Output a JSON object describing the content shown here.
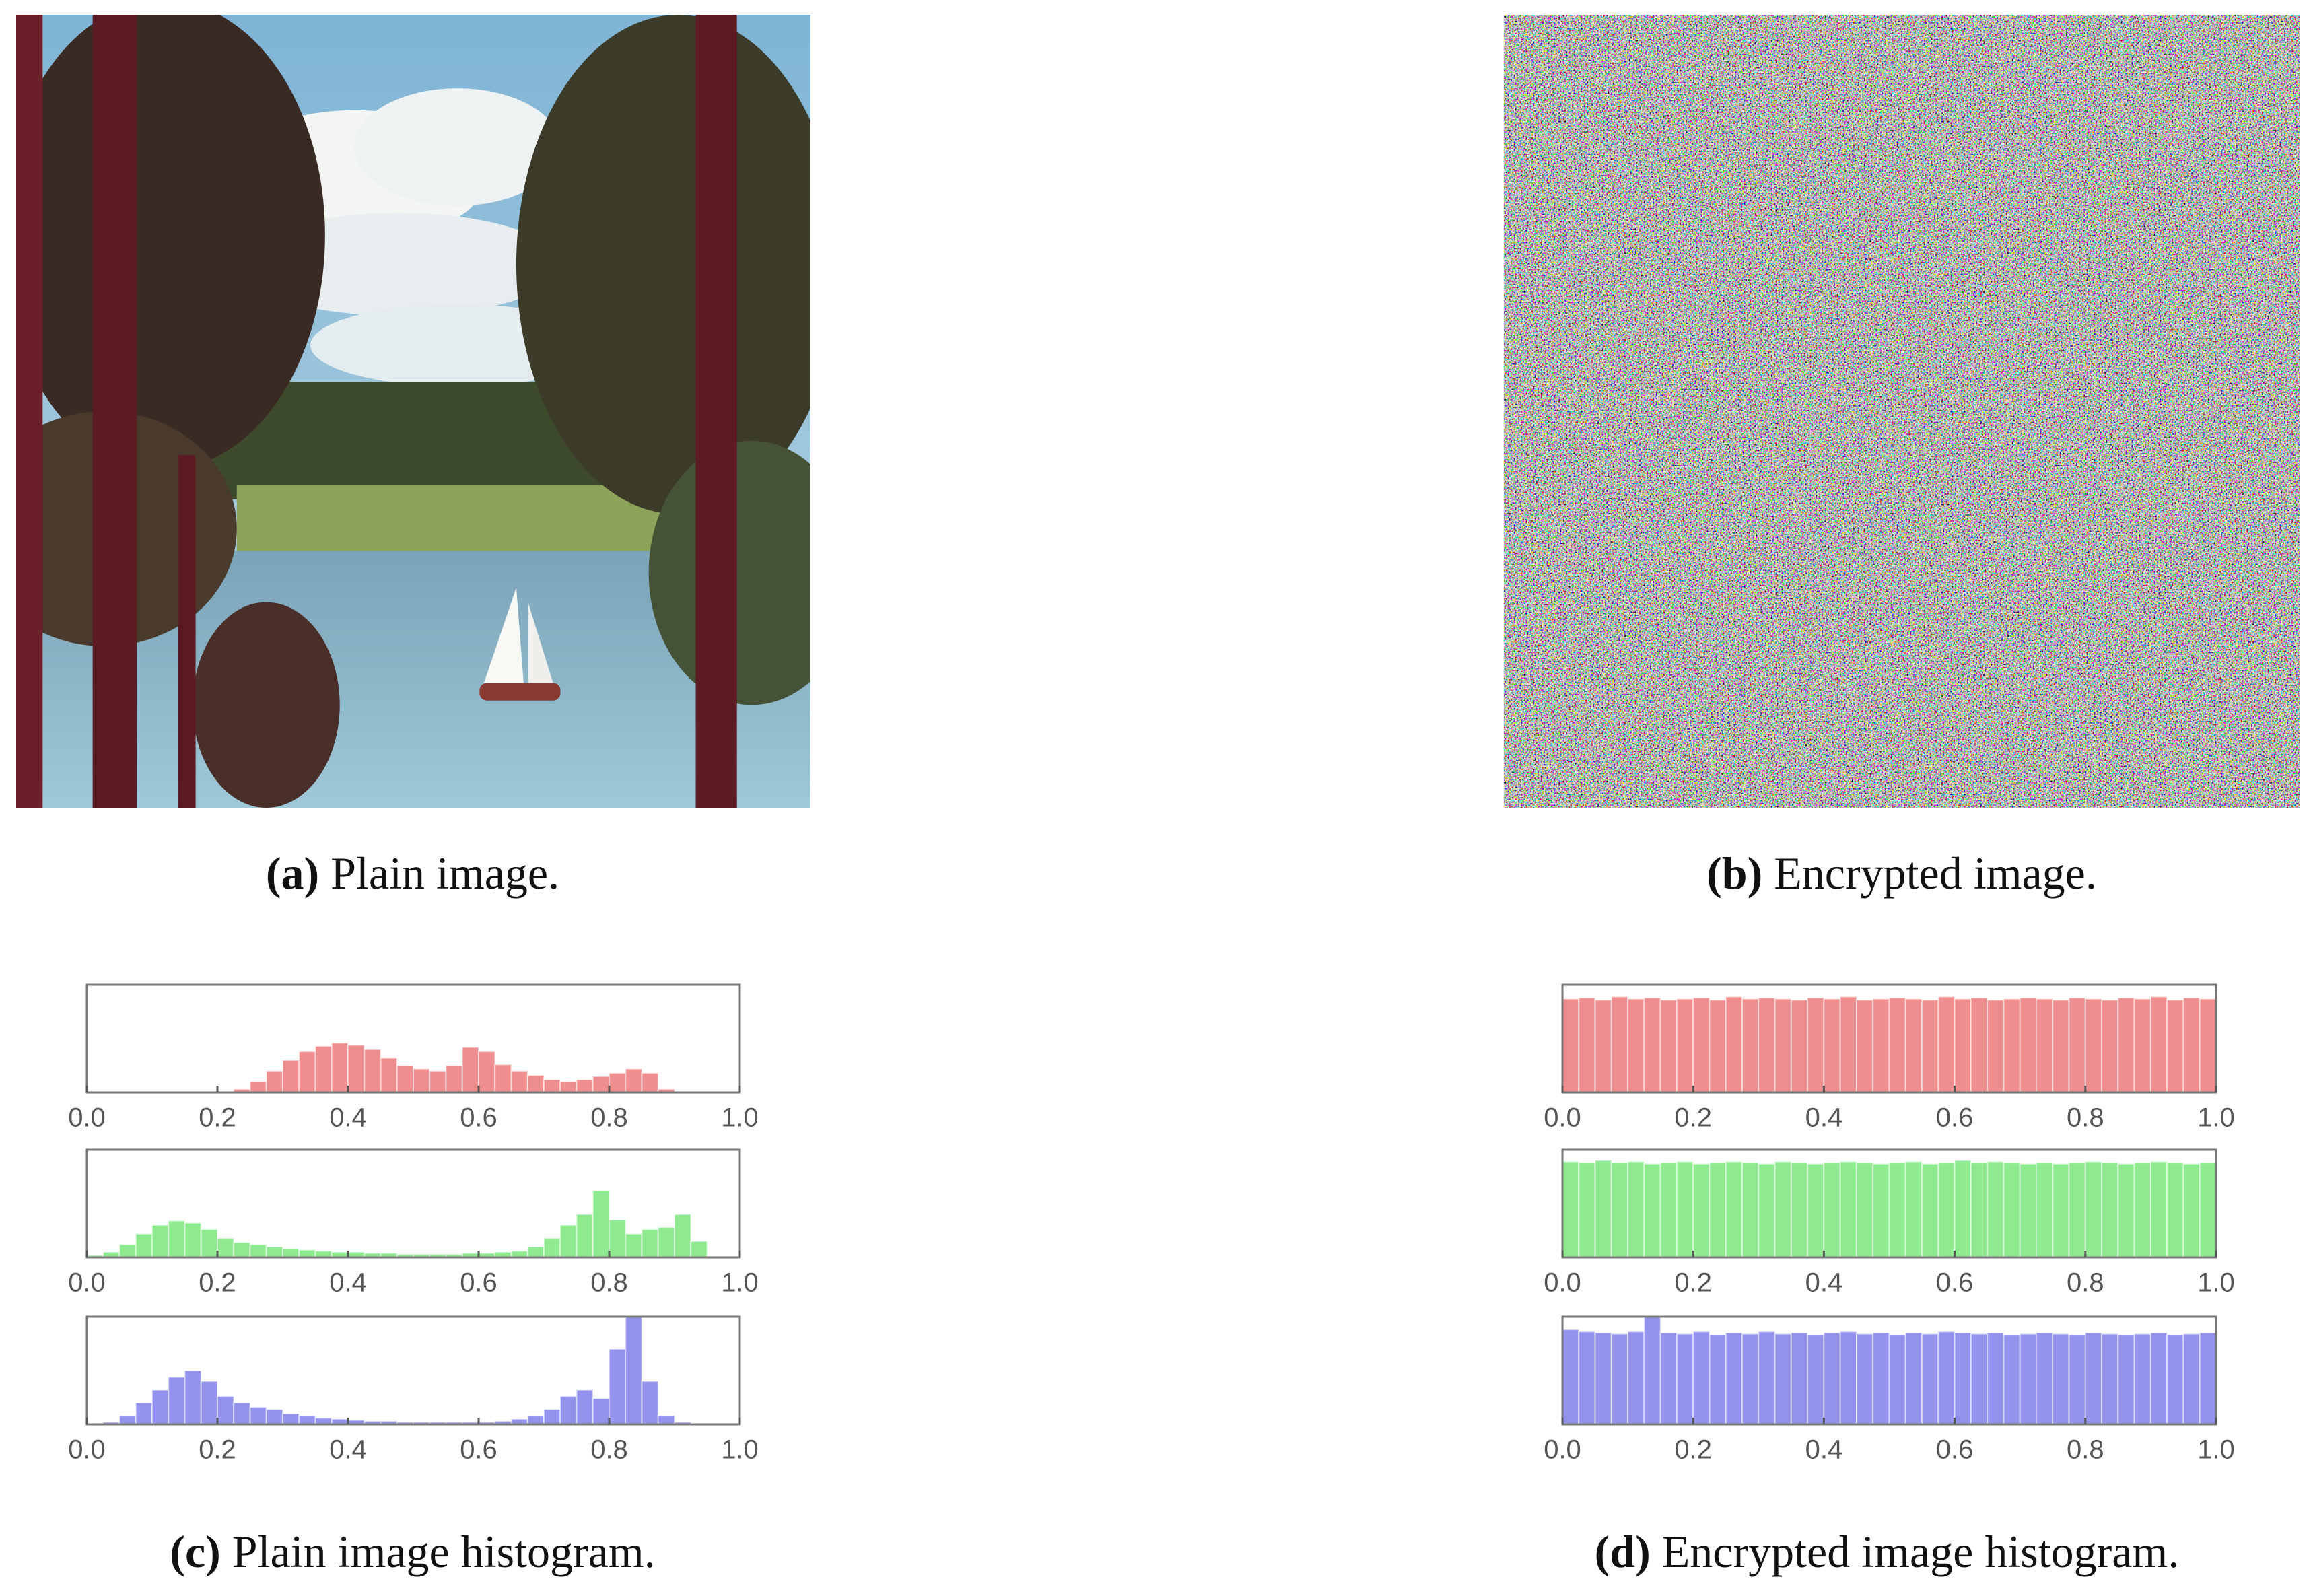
{
  "figure": {
    "panels": [
      {
        "label": "(a)",
        "caption": "Plain image."
      },
      {
        "label": "(b)",
        "caption": "Encrypted image."
      },
      {
        "label": "(c)",
        "caption": "Plain image histogram."
      },
      {
        "label": "(d)",
        "caption": "Encrypted image histogram."
      }
    ]
  },
  "chart_data": [
    {
      "type": "histogram",
      "color": "#ef8e8e",
      "bins": [
        0,
        0.025,
        0.05,
        0.075,
        0.1,
        0.125,
        0.15,
        0.175,
        0.2,
        0.225,
        0.25,
        0.275,
        0.3,
        0.325,
        0.35,
        0.375,
        0.4,
        0.425,
        0.45,
        0.475,
        0.5,
        0.525,
        0.55,
        0.575,
        0.6,
        0.625,
        0.65,
        0.675,
        0.7,
        0.725,
        0.75,
        0.775,
        0.8,
        0.825,
        0.85,
        0.875,
        0.9,
        0.925,
        0.95,
        0.975,
        1
      ],
      "values": [
        0,
        0,
        0,
        0,
        0,
        0,
        0,
        0,
        0,
        3,
        10,
        20,
        30,
        38,
        43,
        46,
        44,
        40,
        32,
        25,
        22,
        20,
        25,
        42,
        38,
        26,
        20,
        16,
        12,
        10,
        12,
        15,
        18,
        22,
        18,
        3,
        0,
        0,
        0,
        0
      ],
      "xlim": [
        0,
        1
      ],
      "ylim": [
        0,
        100
      ],
      "xticks": [
        {
          "value": 0,
          "label": "0.0"
        },
        0.2,
        0.4,
        0.6,
        0.8,
        {
          "value": 1,
          "label": "1.0"
        }
      ]
    },
    {
      "type": "histogram",
      "color": "#8fea8f",
      "bins": [
        0,
        0.025,
        0.05,
        0.075,
        0.1,
        0.125,
        0.15,
        0.175,
        0.2,
        0.225,
        0.25,
        0.275,
        0.3,
        0.325,
        0.35,
        0.375,
        0.4,
        0.425,
        0.45,
        0.475,
        0.5,
        0.525,
        0.55,
        0.575,
        0.6,
        0.625,
        0.65,
        0.675,
        0.7,
        0.725,
        0.75,
        0.775,
        0.8,
        0.825,
        0.85,
        0.875,
        0.9,
        0.925,
        0.95,
        0.975,
        1
      ],
      "values": [
        2,
        5,
        12,
        22,
        30,
        34,
        32,
        26,
        18,
        14,
        12,
        10,
        8,
        7,
        6,
        5,
        5,
        4,
        4,
        3,
        3,
        3,
        3,
        4,
        4,
        5,
        6,
        10,
        18,
        30,
        40,
        62,
        35,
        22,
        26,
        28,
        40,
        15,
        0,
        0
      ],
      "xlim": [
        0,
        1
      ],
      "ylim": [
        0,
        100
      ],
      "xticks": [
        {
          "value": 0,
          "label": "0.0"
        },
        0.2,
        0.4,
        0.6,
        0.8,
        {
          "value": 1,
          "label": "1.0"
        }
      ]
    },
    {
      "type": "histogram",
      "color": "#9393ee",
      "bins": [
        0,
        0.025,
        0.05,
        0.075,
        0.1,
        0.125,
        0.15,
        0.175,
        0.2,
        0.225,
        0.25,
        0.275,
        0.3,
        0.325,
        0.35,
        0.375,
        0.4,
        0.425,
        0.45,
        0.475,
        0.5,
        0.525,
        0.55,
        0.575,
        0.6,
        0.625,
        0.65,
        0.675,
        0.7,
        0.725,
        0.75,
        0.775,
        0.8,
        0.825,
        0.85,
        0.875,
        0.9,
        0.925,
        0.95,
        0.975,
        1
      ],
      "values": [
        0,
        2,
        8,
        20,
        32,
        44,
        50,
        40,
        26,
        20,
        16,
        14,
        10,
        8,
        6,
        5,
        4,
        3,
        3,
        2,
        2,
        2,
        2,
        2,
        2,
        3,
        5,
        8,
        14,
        26,
        32,
        24,
        70,
        100,
        40,
        8,
        2,
        0,
        0,
        0
      ],
      "xlim": [
        0,
        1
      ],
      "ylim": [
        0,
        100
      ],
      "xticks": [
        {
          "value": 0,
          "label": "0.0"
        },
        0.2,
        0.4,
        0.6,
        0.8,
        {
          "value": 1,
          "label": "1.0"
        }
      ]
    },
    {
      "type": "histogram",
      "color": "#ef8e8e",
      "bins": [
        0,
        0.025,
        0.05,
        0.075,
        0.1,
        0.125,
        0.15,
        0.175,
        0.2,
        0.225,
        0.25,
        0.275,
        0.3,
        0.325,
        0.35,
        0.375,
        0.4,
        0.425,
        0.45,
        0.475,
        0.5,
        0.525,
        0.55,
        0.575,
        0.6,
        0.625,
        0.65,
        0.675,
        0.7,
        0.725,
        0.75,
        0.775,
        0.8,
        0.825,
        0.85,
        0.875,
        0.9,
        0.925,
        0.95,
        0.975,
        1
      ],
      "values": [
        87,
        88,
        86,
        89,
        87,
        88,
        86,
        87,
        88,
        86,
        89,
        87,
        88,
        87,
        86,
        88,
        87,
        89,
        86,
        87,
        88,
        87,
        86,
        89,
        87,
        88,
        86,
        87,
        88,
        87,
        86,
        88,
        87,
        86,
        88,
        87,
        89,
        86,
        88,
        87
      ],
      "xlim": [
        0,
        1
      ],
      "ylim": [
        0,
        100
      ],
      "xticks": [
        {
          "value": 0,
          "label": "0.0"
        },
        0.2,
        0.4,
        0.6,
        0.8,
        {
          "value": 1,
          "label": "1.0"
        }
      ]
    },
    {
      "type": "histogram",
      "color": "#8fea8f",
      "bins": [
        0,
        0.025,
        0.05,
        0.075,
        0.1,
        0.125,
        0.15,
        0.175,
        0.2,
        0.225,
        0.25,
        0.275,
        0.3,
        0.325,
        0.35,
        0.375,
        0.4,
        0.425,
        0.45,
        0.475,
        0.5,
        0.525,
        0.55,
        0.575,
        0.6,
        0.625,
        0.65,
        0.675,
        0.7,
        0.725,
        0.75,
        0.775,
        0.8,
        0.825,
        0.85,
        0.875,
        0.9,
        0.925,
        0.95,
        0.975,
        1
      ],
      "values": [
        89,
        88,
        90,
        88,
        89,
        87,
        88,
        89,
        87,
        88,
        89,
        88,
        87,
        89,
        88,
        87,
        88,
        89,
        88,
        87,
        88,
        89,
        87,
        88,
        90,
        88,
        89,
        88,
        87,
        88,
        87,
        88,
        89,
        88,
        87,
        88,
        89,
        88,
        87,
        88
      ],
      "xlim": [
        0,
        1
      ],
      "ylim": [
        0,
        100
      ],
      "xticks": [
        {
          "value": 0,
          "label": "0.0"
        },
        0.2,
        0.4,
        0.6,
        0.8,
        {
          "value": 1,
          "label": "1.0"
        }
      ]
    },
    {
      "type": "histogram",
      "color": "#9393ee",
      "bins": [
        0,
        0.025,
        0.05,
        0.075,
        0.1,
        0.125,
        0.15,
        0.175,
        0.2,
        0.225,
        0.25,
        0.275,
        0.3,
        0.325,
        0.35,
        0.375,
        0.4,
        0.425,
        0.45,
        0.475,
        0.5,
        0.525,
        0.55,
        0.575,
        0.6,
        0.625,
        0.65,
        0.675,
        0.7,
        0.725,
        0.75,
        0.775,
        0.8,
        0.825,
        0.85,
        0.875,
        0.9,
        0.925,
        0.95,
        0.975,
        1
      ],
      "values": [
        88,
        86,
        85,
        84,
        86,
        100,
        85,
        84,
        86,
        83,
        85,
        84,
        86,
        84,
        85,
        83,
        85,
        86,
        84,
        85,
        83,
        85,
        84,
        86,
        85,
        84,
        85,
        83,
        84,
        85,
        84,
        83,
        85,
        84,
        83,
        84,
        85,
        83,
        84,
        85
      ],
      "xlim": [
        0,
        1
      ],
      "ylim": [
        0,
        100
      ],
      "xticks": [
        {
          "value": 0,
          "label": "0.0"
        },
        0.2,
        0.4,
        0.6,
        0.8,
        {
          "value": 1,
          "label": "1.0"
        }
      ]
    }
  ]
}
